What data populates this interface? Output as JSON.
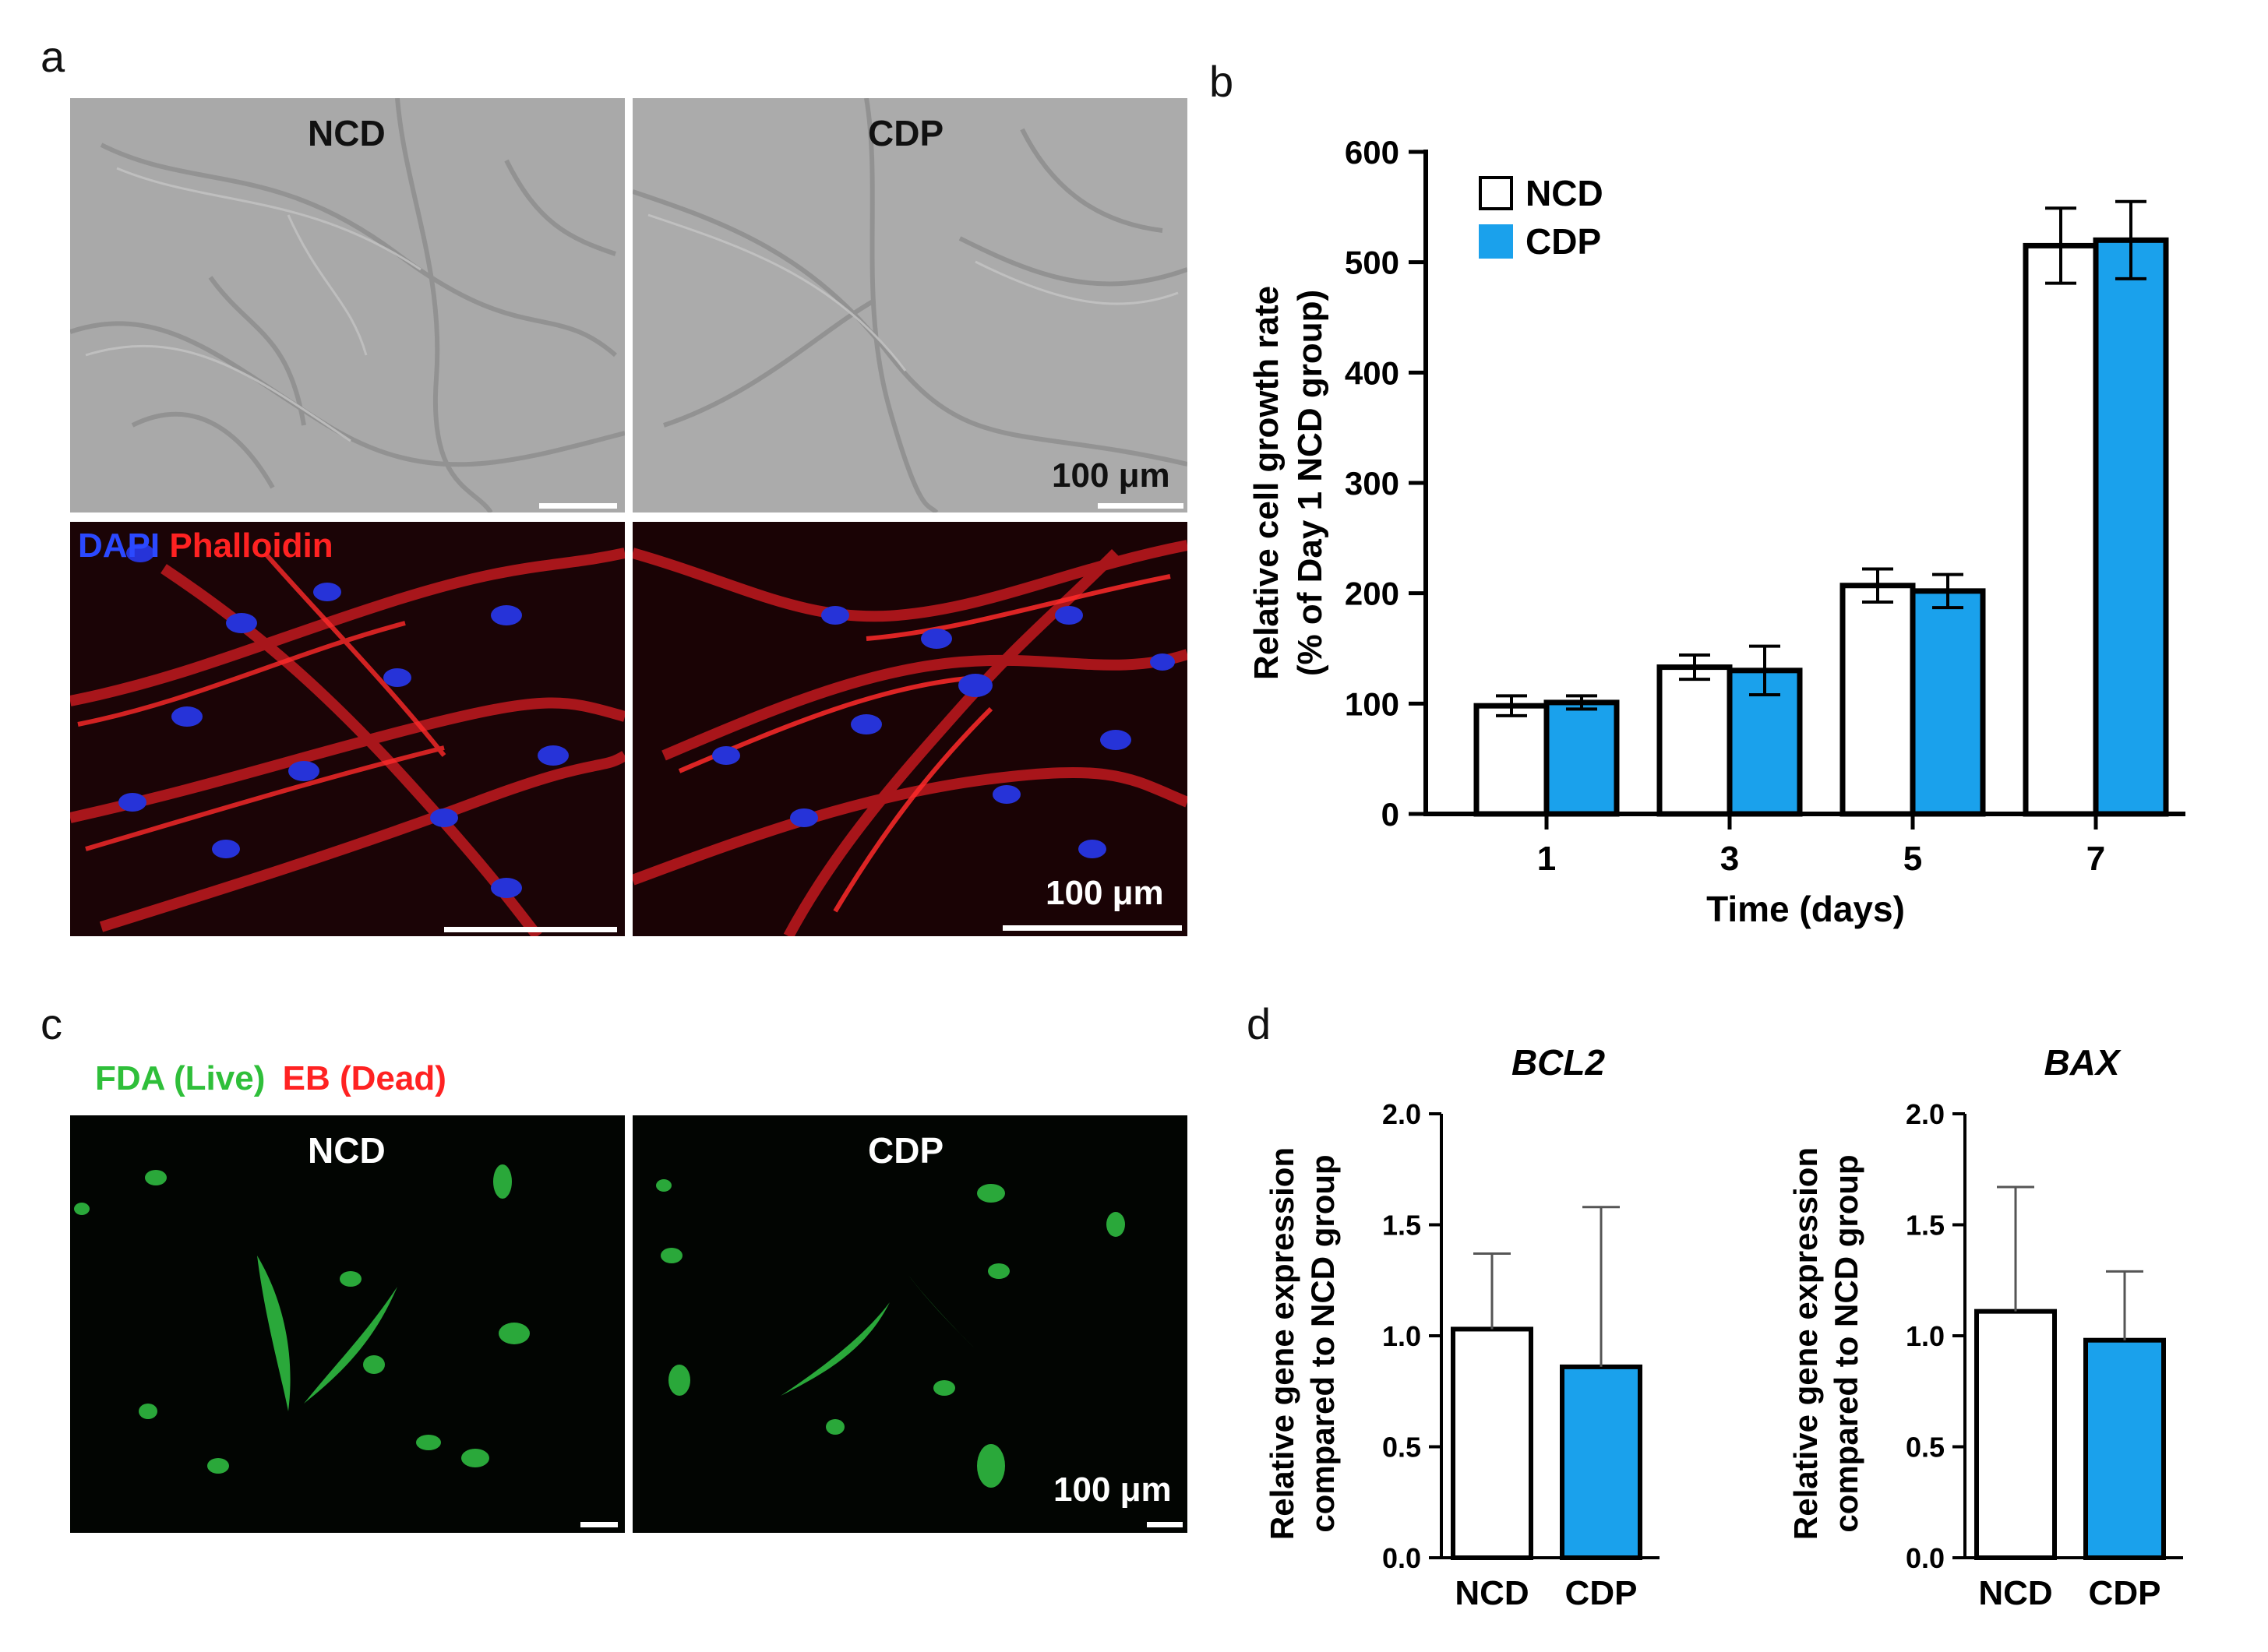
{
  "panels": {
    "a": {
      "label": "a",
      "top_left_label": "NCD",
      "top_right_label": "CDP",
      "scale_bar": "100 μm",
      "stain_blue": "DAPI",
      "stain_red": "Phalloidin",
      "bottom_scale_bar": "100 μm"
    },
    "b": {
      "label": "b"
    },
    "c": {
      "label": "c",
      "stain_green": "FDA (Live)",
      "stain_red": "EB (Dead)",
      "left_label": "NCD",
      "right_label": "CDP",
      "scale_bar": "100 μm"
    },
    "d": {
      "label": "d"
    }
  },
  "colors": {
    "ncd": "#ffffff",
    "cdp": "#1aa1ec",
    "stroke": "#000000",
    "dapi": "#1f3bff",
    "phalloidin": "#ff1e1e",
    "fda": "#2fbf3a"
  },
  "chart_data": [
    {
      "type": "bar",
      "panel": "b",
      "categories": [
        "1",
        "3",
        "5",
        "7"
      ],
      "series": [
        {
          "name": "NCD",
          "values": [
            98,
            133,
            207,
            515
          ],
          "errors": [
            9,
            11,
            15,
            34
          ]
        },
        {
          "name": "CDP",
          "values": [
            101,
            130,
            202,
            520
          ],
          "errors": [
            6,
            22,
            15,
            35
          ]
        }
      ],
      "title": "",
      "xlabel": "Time (days)",
      "ylabel": [
        "Relative cell growth rate",
        "(% of  Day 1 NCD group)"
      ],
      "ylim": [
        0,
        600
      ],
      "yticks": [
        "0",
        "100",
        "200",
        "300",
        "400",
        "500",
        "600"
      ],
      "legend": "top-left",
      "grid": false
    },
    {
      "type": "bar",
      "panel": "d-left",
      "categories": [
        "NCD",
        "CDP"
      ],
      "values": [
        1.03,
        0.86
      ],
      "errors": [
        0.34,
        0.72
      ],
      "title": "BCL2",
      "xlabel": "",
      "ylabel": [
        "Relative gene  expression",
        "compared to NCD group"
      ],
      "ylim": [
        0,
        2.0
      ],
      "yticks": [
        "0.0",
        "0.5",
        "1.0",
        "1.5",
        "2.0"
      ],
      "grid": false
    },
    {
      "type": "bar",
      "panel": "d-right",
      "categories": [
        "NCD",
        "CDP"
      ],
      "values": [
        1.11,
        0.98
      ],
      "errors": [
        0.56,
        0.31
      ],
      "title": "BAX",
      "xlabel": "",
      "ylabel": [
        "Relative gene  expression",
        "compared to NCD group"
      ],
      "ylim": [
        0,
        2.0
      ],
      "yticks": [
        "0.0",
        "0.5",
        "1.0",
        "1.5",
        "2.0"
      ],
      "grid": false
    }
  ]
}
